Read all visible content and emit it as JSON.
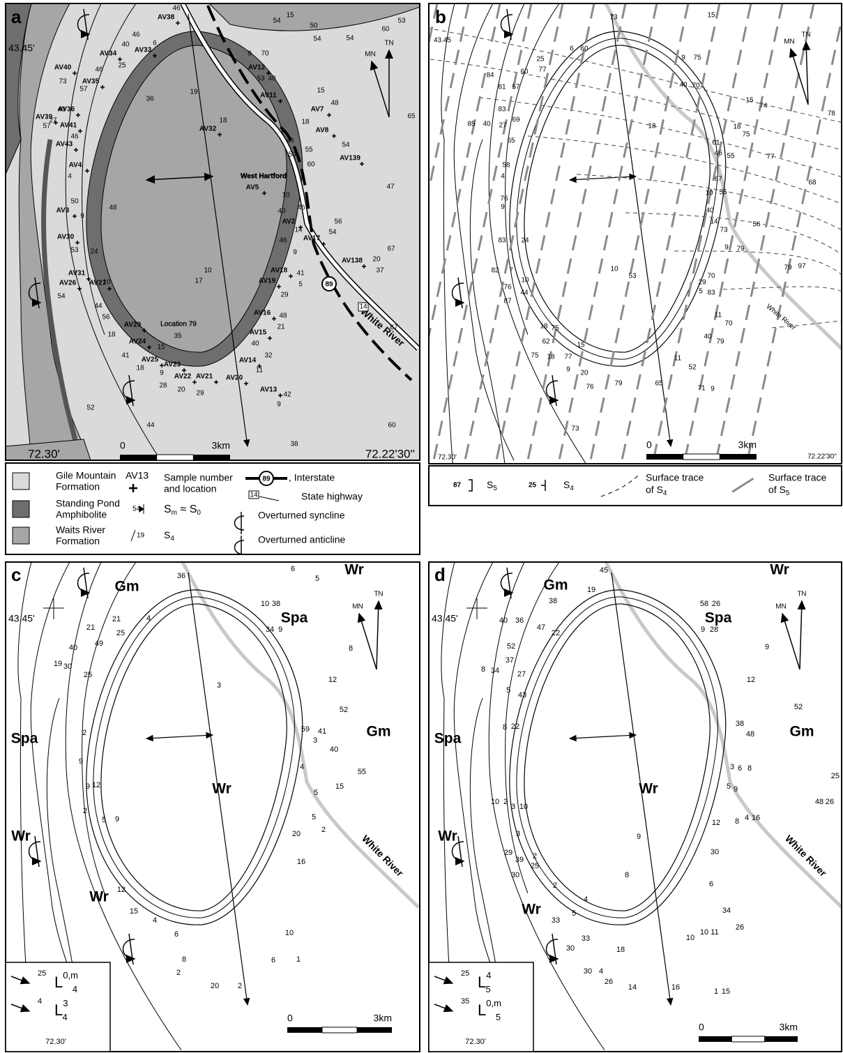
{
  "panels": [
    {
      "letter": "a",
      "latitude": "43.45'",
      "longitude_left": "72.30'",
      "longitude_right": "72.22'30''",
      "scale_start": 0,
      "scale_end": "3km",
      "north": [
        "MN",
        "TN"
      ],
      "places": [
        "West Hartford",
        "Location 79",
        "White River"
      ],
      "interstate": "89",
      "highway": "14",
      "samples": [
        "AV38",
        "AV33",
        "AV34",
        "AV40",
        "AV35",
        "AV12",
        "AV11",
        "AV7",
        "AV8",
        "AV32",
        "AV36",
        "AV41",
        "AV43",
        "AV39",
        "AV139",
        "AV4",
        "AV5",
        "AV3",
        "AV2",
        "AV17",
        "AV30",
        "AV138",
        "AV18",
        "AV31",
        "AV26",
        "AV27",
        "AV19",
        "AV16",
        "AV15",
        "AV29",
        "AV24",
        "AV25",
        "AV14",
        "AV23",
        "AV22",
        "AV21",
        "AV20",
        "AV13"
      ],
      "attitudes": [
        46,
        15,
        54,
        50,
        54,
        54,
        60,
        53,
        40,
        6,
        46,
        25,
        46,
        57,
        73,
        9,
        70,
        53,
        40,
        19,
        36,
        15,
        48,
        18,
        18,
        65,
        40,
        57,
        27,
        46,
        46,
        50,
        55,
        60,
        54,
        47,
        48,
        4,
        50,
        9,
        40,
        46,
        10,
        14,
        46,
        56,
        54,
        9,
        67,
        20,
        37,
        41,
        5,
        29,
        53,
        24,
        10,
        54,
        44,
        56,
        10,
        17,
        48,
        21,
        40,
        32,
        11,
        35,
        18,
        15,
        41,
        18,
        9,
        28,
        20,
        29,
        42,
        9,
        67,
        60,
        52,
        44,
        38
      ]
    },
    {
      "letter": "b",
      "latitude": "43.45",
      "longitude_left": "72.30'",
      "longitude_right": "72.22'30''",
      "scale_start": 0,
      "scale_end": "3km",
      "north": [
        "MN",
        "TN"
      ],
      "places": [
        "White River"
      ],
      "attitudes": [
        73,
        15,
        25,
        77,
        6,
        60,
        9,
        75,
        84,
        60,
        81,
        57,
        40,
        70,
        83,
        69,
        27,
        85,
        40,
        65,
        18,
        78,
        15,
        74,
        18,
        75,
        61,
        46,
        55,
        77,
        68,
        58,
        4,
        67,
        10,
        55,
        76,
        9,
        40,
        14,
        73,
        56,
        83,
        24,
        9,
        79,
        82,
        7,
        10,
        53,
        79,
        97,
        10,
        76,
        44,
        87,
        29,
        5,
        70,
        83,
        11,
        70,
        18,
        75,
        40,
        79,
        62,
        15,
        75,
        18,
        77,
        9,
        11,
        52,
        20,
        79,
        65,
        76,
        71,
        9,
        73
      ]
    },
    {
      "letter": "c",
      "latitude": "43.45'",
      "longitude_left": "72.30'",
      "scale_start": 0,
      "scale_end": "3km",
      "north": [
        "MN",
        "TN"
      ],
      "places": [
        "White River"
      ],
      "units": [
        "Gm",
        "Wr",
        "Spa",
        "Gm",
        "Spa",
        "Wr",
        "Wr",
        "Wr"
      ],
      "attitudes": [
        36,
        6,
        5,
        10,
        38,
        34,
        9,
        21,
        4,
        21,
        25,
        40,
        49,
        8,
        19,
        30,
        25,
        12,
        3,
        59,
        41,
        52,
        3,
        2,
        40,
        9,
        4,
        55,
        9,
        12,
        15,
        5,
        2,
        9,
        5,
        5,
        2,
        20,
        16,
        12,
        15,
        4,
        6,
        10,
        8,
        2,
        6,
        1,
        20,
        2
      ],
      "legend": [
        {
          "value": 25,
          "symbol": "L",
          "sup": "0,m",
          "sub": "4"
        },
        {
          "value": 4,
          "symbol": "L",
          "sup": "3",
          "sub": "4"
        }
      ]
    },
    {
      "letter": "d",
      "latitude": "43.45'",
      "longitude_left": "72.30'",
      "scale_start": 0,
      "scale_end": "3km",
      "north": [
        "MN",
        "TN"
      ],
      "places": [
        "White River"
      ],
      "units": [
        "Gm",
        "Wr",
        "Spa",
        "Gm",
        "Spa",
        "Wr",
        "Wr",
        "Wr"
      ],
      "attitudes": [
        45,
        19,
        38,
        40,
        36,
        58,
        26,
        47,
        22,
        9,
        28,
        52,
        9,
        37,
        8,
        34,
        27,
        12,
        5,
        43,
        52,
        38,
        48,
        8,
        22,
        3,
        6,
        8,
        25,
        5,
        9,
        10,
        2,
        3,
        10,
        48,
        26,
        12,
        8,
        4,
        16,
        3,
        29,
        39,
        2,
        25,
        30,
        30,
        9,
        8,
        6,
        2,
        4,
        34,
        33,
        5,
        33,
        10,
        11,
        26,
        10,
        30,
        18,
        30,
        4,
        26,
        14,
        16,
        1,
        15
      ],
      "legend": [
        {
          "value": 25,
          "symbol": "L",
          "sup": "4",
          "sub": "5"
        },
        {
          "value": 35,
          "symbol": "L",
          "sup": "0,m",
          "sub": "5"
        }
      ]
    }
  ],
  "legend_a": {
    "units": [
      [
        "Gile Mountain",
        "Formation"
      ],
      [
        "Standing Pond",
        "Amphibolite"
      ],
      [
        "Waits River",
        "Formation"
      ]
    ],
    "sample": {
      "code": "AV13",
      "label": [
        "Sample number",
        "and location"
      ]
    },
    "sm": {
      "value": 54,
      "label": "S",
      "sub": "m",
      "approx": " ≈ S",
      "sub2": "0"
    },
    "s4": {
      "value": 19,
      "label": "S",
      "sub": "4"
    },
    "interstate": {
      "code": "89",
      "label": ", Interstate"
    },
    "highway": {
      "code": "14",
      "label": "State highway"
    },
    "folds": [
      "Overturned syncline",
      "Overturned anticline"
    ]
  },
  "legend_b": {
    "s5": {
      "value": 87,
      "label": "S",
      "sub": "5"
    },
    "s4": {
      "value": 25,
      "label": "S",
      "sub": "4"
    },
    "trace_s4": {
      "label": [
        "Surface trace",
        "of S"
      ],
      "sub": "4"
    },
    "trace_s5": {
      "label": [
        "Surface trace",
        "of S"
      ],
      "sub": "5"
    }
  }
}
